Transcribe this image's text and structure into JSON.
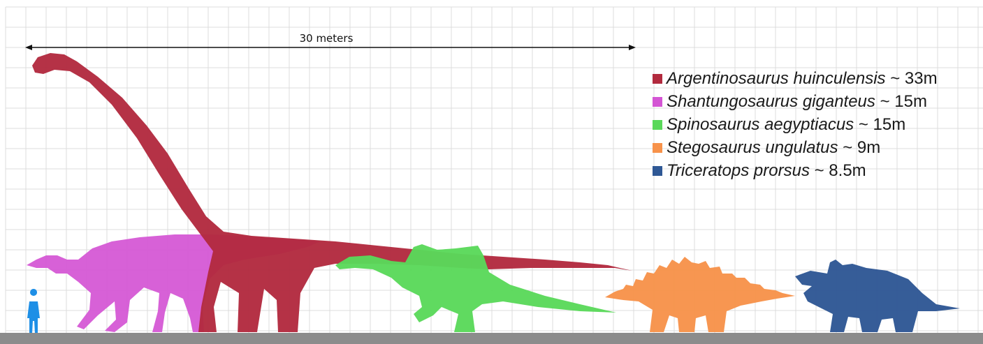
{
  "scale": {
    "label": "30 meters"
  },
  "legend": [
    {
      "species": "Argentinosaurus huinculensis",
      "size": "~ 33m",
      "color": "#b22a3e"
    },
    {
      "species": "Shantungosaurus giganteus",
      "size": "~ 15m",
      "color": "#d455d4"
    },
    {
      "species": "Spinosaurus aegyptiacus",
      "size": "~ 15m",
      "color": "#5ad85a"
    },
    {
      "species": "Stegosaurus ungulatus",
      "size": "~ 9m",
      "color": "#f7924a"
    },
    {
      "species": "Triceratops prorsus",
      "size": "~ 8.5m",
      "color": "#2f5895"
    }
  ],
  "colors": {
    "human": "#1e8fe6",
    "ground": "#8c8c8c",
    "grid": "#dcdcdc"
  }
}
